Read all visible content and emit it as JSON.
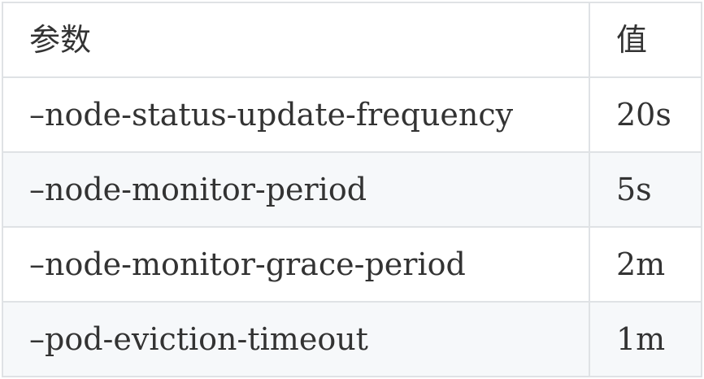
{
  "table": {
    "headers": [
      "参数",
      "值"
    ],
    "rows": [
      {
        "param": "–node-status-update-frequency",
        "value": "20s"
      },
      {
        "param": "–node-monitor-period",
        "value": "5s"
      },
      {
        "param": "–node-monitor-grace-period",
        "value": "2m"
      },
      {
        "param": "–pod-eviction-timeout",
        "value": "1m"
      }
    ]
  }
}
